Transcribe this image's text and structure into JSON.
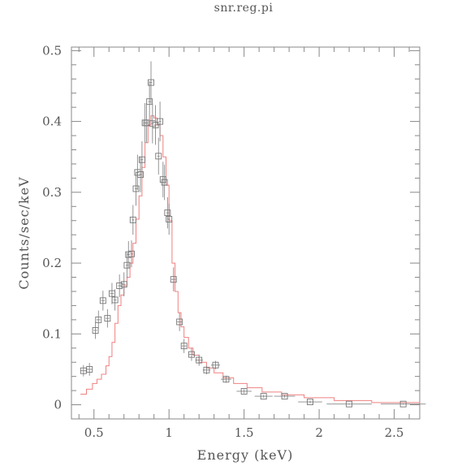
{
  "chart_data": {
    "type": "scatter",
    "title": "snr.reg.pi",
    "xlabel": "Energy (keV)",
    "ylabel": "Counts/sec/keV",
    "xlim": [
      0.35,
      2.67
    ],
    "ylim": [
      -0.02,
      0.505
    ],
    "x_ticks": [
      {
        "value": 0.5,
        "label": "0.5"
      },
      {
        "value": 1.0,
        "label": "1"
      },
      {
        "value": 1.5,
        "label": "1.5"
      },
      {
        "value": 2.0,
        "label": "2"
      },
      {
        "value": 2.5,
        "label": "2.5"
      }
    ],
    "y_ticks": [
      {
        "value": 0.0,
        "label": "0"
      },
      {
        "value": 0.1,
        "label": "0.1"
      },
      {
        "value": 0.2,
        "label": "0.2"
      },
      {
        "value": 0.3,
        "label": "0.3"
      },
      {
        "value": 0.4,
        "label": "0.4"
      },
      {
        "value": 0.5,
        "label": "0.5"
      }
    ],
    "grid": false,
    "series": [
      {
        "kind": "data",
        "color": "#777777",
        "x": [
          0.43,
          0.47,
          0.51,
          0.53,
          0.56,
          0.59,
          0.62,
          0.64,
          0.67,
          0.7,
          0.72,
          0.73,
          0.75,
          0.76,
          0.78,
          0.79,
          0.81,
          0.82,
          0.84,
          0.85,
          0.87,
          0.88,
          0.89,
          0.91,
          0.93,
          0.94,
          0.96,
          0.97,
          0.99,
          1.0,
          1.03,
          1.07,
          1.1,
          1.15,
          1.2,
          1.25,
          1.31,
          1.38,
          1.5,
          1.63,
          1.77,
          1.94,
          2.2,
          2.56
        ],
        "y": [
          0.048,
          0.05,
          0.105,
          0.12,
          0.147,
          0.122,
          0.157,
          0.148,
          0.168,
          0.17,
          0.197,
          0.212,
          0.213,
          0.261,
          0.305,
          0.328,
          0.325,
          0.346,
          0.398,
          0.398,
          0.428,
          0.455,
          0.397,
          0.395,
          0.351,
          0.4,
          0.318,
          0.314,
          0.271,
          0.262,
          0.177,
          0.117,
          0.083,
          0.071,
          0.063,
          0.049,
          0.056,
          0.036,
          0.019,
          0.012,
          0.012,
          0.004,
          0.001,
          0.001
        ],
        "y_err": [
          0.008,
          0.009,
          0.012,
          0.013,
          0.014,
          0.013,
          0.015,
          0.015,
          0.016,
          0.017,
          0.018,
          0.019,
          0.019,
          0.021,
          0.024,
          0.025,
          0.025,
          0.026,
          0.028,
          0.028,
          0.029,
          0.03,
          0.028,
          0.028,
          0.026,
          0.028,
          0.025,
          0.025,
          0.022,
          0.022,
          0.017,
          0.013,
          0.01,
          0.009,
          0.008,
          0.006,
          0.006,
          0.005,
          0.003,
          0.002,
          0.002,
          0.002,
          0.001,
          0.001
        ],
        "x_err": [
          0.02,
          0.02,
          0.012,
          0.012,
          0.012,
          0.012,
          0.012,
          0.01,
          0.01,
          0.01,
          0.008,
          0.008,
          0.008,
          0.008,
          0.008,
          0.008,
          0.008,
          0.008,
          0.008,
          0.008,
          0.008,
          0.008,
          0.008,
          0.008,
          0.008,
          0.008,
          0.008,
          0.008,
          0.008,
          0.008,
          0.015,
          0.015,
          0.015,
          0.02,
          0.025,
          0.025,
          0.03,
          0.035,
          0.05,
          0.06,
          0.07,
          0.08,
          0.15,
          0.15
        ]
      },
      {
        "kind": "model",
        "color": "#f08080",
        "x": [
          0.41,
          0.45,
          0.49,
          0.52,
          0.55,
          0.58,
          0.6,
          0.62,
          0.64,
          0.66,
          0.68,
          0.7,
          0.72,
          0.74,
          0.76,
          0.78,
          0.8,
          0.82,
          0.84,
          0.86,
          0.88,
          0.9,
          0.92,
          0.94,
          0.96,
          0.98,
          1.0,
          1.02,
          1.04,
          1.06,
          1.08,
          1.1,
          1.13,
          1.16,
          1.2,
          1.25,
          1.3,
          1.36,
          1.43,
          1.52,
          1.62,
          1.75,
          1.9,
          2.1,
          2.35,
          2.67
        ],
        "y": [
          0.015,
          0.022,
          0.03,
          0.036,
          0.043,
          0.055,
          0.068,
          0.088,
          0.115,
          0.14,
          0.155,
          0.168,
          0.18,
          0.2,
          0.228,
          0.262,
          0.295,
          0.335,
          0.37,
          0.395,
          0.408,
          0.405,
          0.395,
          0.38,
          0.35,
          0.31,
          0.26,
          0.2,
          0.16,
          0.13,
          0.11,
          0.095,
          0.08,
          0.07,
          0.06,
          0.052,
          0.045,
          0.038,
          0.03,
          0.024,
          0.018,
          0.014,
          0.01,
          0.006,
          0.003,
          0.002
        ]
      }
    ]
  }
}
